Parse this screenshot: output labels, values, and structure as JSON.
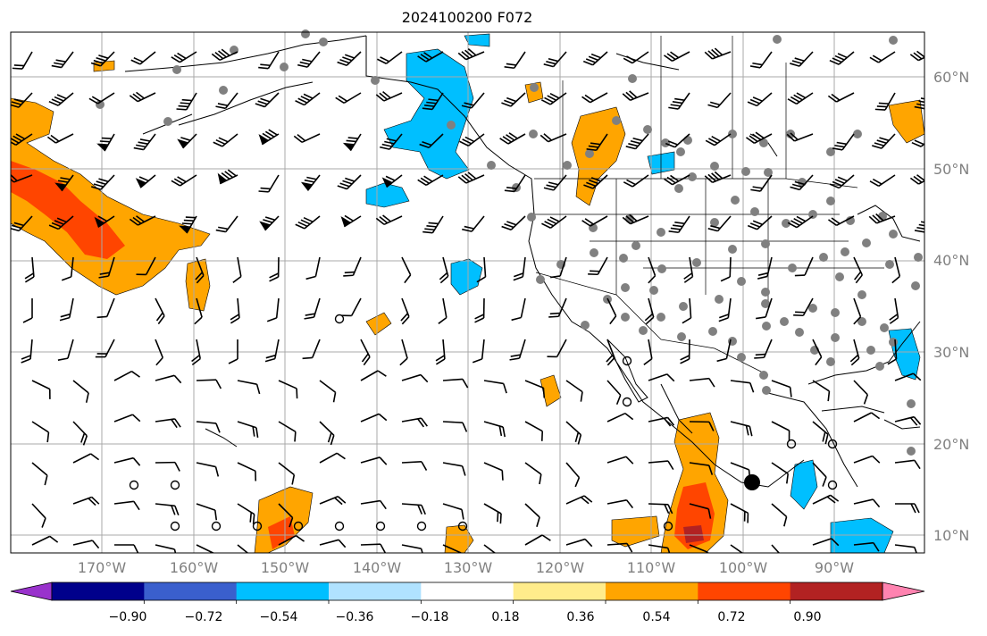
{
  "title": "2024100200 F072",
  "map": {
    "lat_labels": [
      "60°N",
      "50°N",
      "40°N",
      "30°N",
      "20°N",
      "10°N"
    ],
    "lon_labels": [
      "170°W",
      "160°W",
      "150°W",
      "140°W",
      "130°W",
      "120°W",
      "110°W",
      "100°W",
      "90°W"
    ]
  },
  "colorbar": {
    "labels": [
      "−0.90",
      "−0.72",
      "−0.54",
      "−0.36",
      "−0.18",
      "0.18",
      "0.36",
      "0.54",
      "0.72",
      "0.90"
    ],
    "colors": [
      "#9932cc",
      "#00008b",
      "#3a5fcd",
      "#00bfff",
      "#b0e2ff",
      "#ffffff",
      "#ffec8b",
      "#ffa500",
      "#ff4500",
      "#b22222",
      "#ff83b0"
    ]
  },
  "colors": {
    "land_outline": "#000000",
    "grid": "#a9a9a9",
    "station_marker": "#808080"
  }
}
